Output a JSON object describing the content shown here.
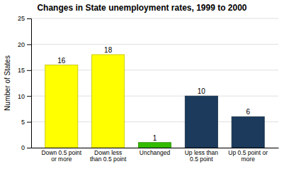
{
  "chart_data": {
    "type": "bar",
    "title": "Changes in State unemployment rates, 1999 to 2000",
    "categories": [
      "Down 0.5 point\nor more",
      "Down less\nthan 0.5 point",
      "Unchanged",
      "Up less than\n0.5 point",
      "Up 0.5 point or\nmore"
    ],
    "values": [
      16,
      18,
      1,
      10,
      6
    ],
    "colors": [
      "#ffff00",
      "#ffff00",
      "#33bb00",
      "#1b3a5c",
      "#1b3a5c"
    ],
    "ylabel": "Number of States",
    "ylim": [
      0,
      25
    ],
    "yticks": [
      0,
      5,
      10,
      15,
      20,
      25
    ],
    "grid": true,
    "data_labels": true
  }
}
